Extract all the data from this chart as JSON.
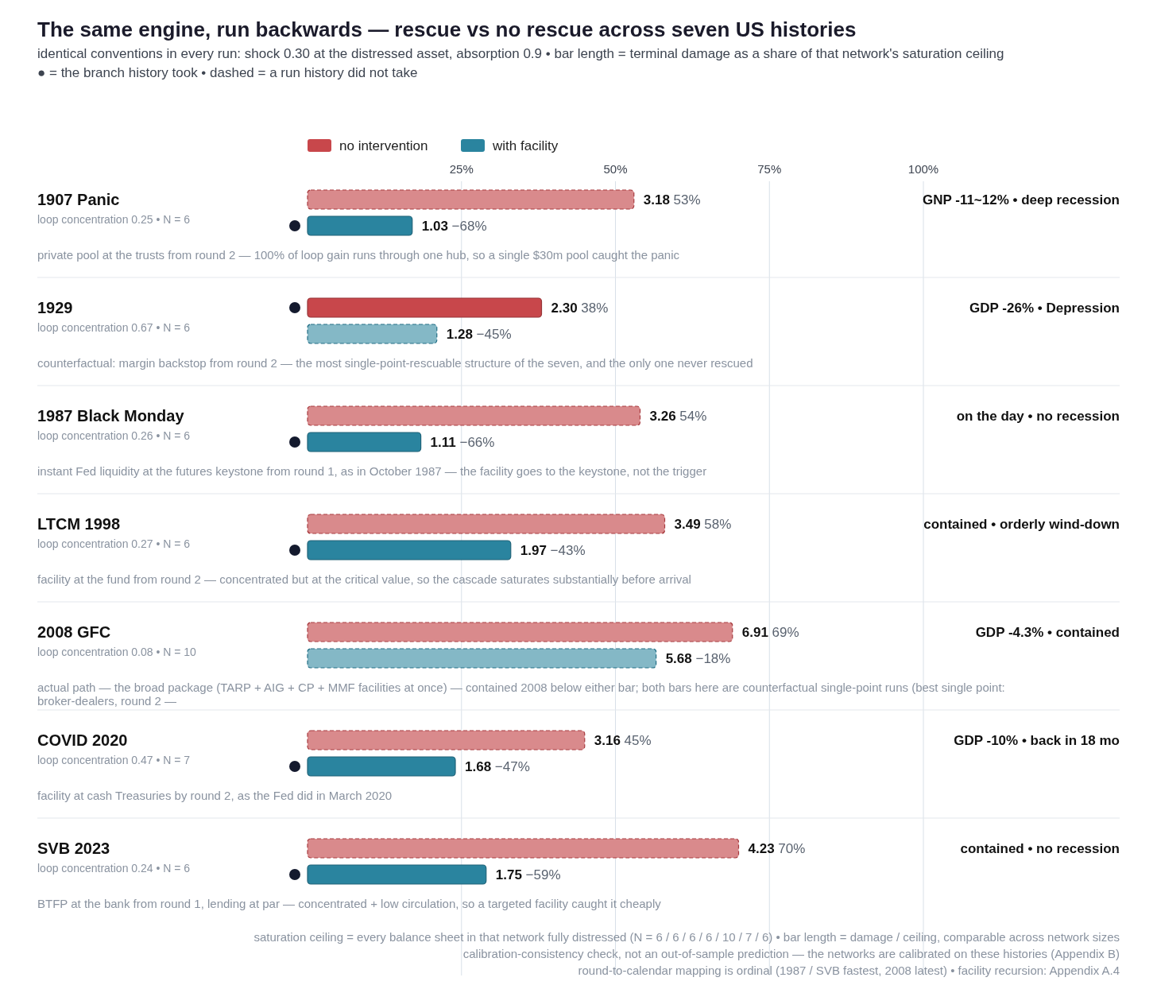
{
  "chart_data": {
    "type": "bar",
    "orientation": "horizontal",
    "title": "The same engine, run backwards — rescue vs no rescue across seven US histories",
    "subtitle": "identical conventions in every run: shock 0.30 at the distressed asset, absorption 0.9  •  bar length = terminal damage as a share of that network's saturation ceiling\n● = the branch history took  •  dashed = a run history did not take",
    "categories": [
      "1907 Panic",
      "1929",
      "1987 Black Monday",
      "LTCM 1998",
      "2008 GFC",
      "COVID 2020",
      "SVB 2023"
    ],
    "series": [
      {
        "name": "no intervention",
        "color": "#c8474b",
        "colors": [
          "#d98a8c",
          "#c8474b",
          "#d98a8c",
          "#d98a8c",
          "#d98a8c",
          "#d98a8c",
          "#d98a8c"
        ],
        "values": [
          53,
          38,
          54,
          58,
          69,
          45,
          70
        ],
        "value_labels": [
          "3.18 53%",
          "2.30 38%",
          "3.26 54%",
          "3.49 58%",
          "6.91 69%",
          "3.16 45%",
          "4.23 70%"
        ]
      },
      {
        "name": "with facility",
        "color": "#2a849f",
        "colors": [
          "#2a849f",
          "#84b8c6",
          "#2a849f",
          "#2a849f",
          "#84b8c6",
          "#2a849f",
          "#2a849f"
        ],
        "values": [
          17,
          21,
          18.4,
          33,
          56.6,
          24,
          29
        ]
      }
    ],
    "xlim": [
      0,
      100
    ],
    "xticks": [
      {
        "value": 25,
        "label": "25%"
      },
      {
        "value": 50,
        "label": "50%"
      },
      {
        "value": 75,
        "label": "75%"
      },
      {
        "value": 100,
        "label": "100%"
      }
    ],
    "grid": "x",
    "legend": "top",
    "annotations": [
      "loop concentration 0.25  •  N = 6",
      "GNP -11~12%  •  deep recession",
      "private pool at the trusts from round 2 — 100% of loop gain runs through one hub, so a single $30m pool caught the panic",
      "1.03 −68%",
      "loop concentration 0.67  •  N = 6",
      "GDP -26%  •  Depression",
      "counterfactual: margin backstop from round 2 — the most single-point-rescuable structure of the seven, and the only one never rescued",
      "1.28 −45%",
      "loop concentration 0.26  •  N = 6",
      "on the day  •  no recession",
      "instant Fed liquidity at the futures keystone from round 1, as in October 1987 — the facility goes to the keystone, not the trigger",
      "1.11 −66%",
      "loop concentration 0.27  •  N = 6",
      "contained  •  orderly wind-down",
      "facility at the fund from round 2 — concentrated but at the critical value, so the cascade saturates substantially before arrival",
      "1.97 −43%",
      "loop concentration 0.08  •  N = 10",
      "GDP -4.3%  •  contained",
      "actual path — the broad package (TARP + AIG + CP + MMF facilities at once) — contained 2008 below either bar; both bars here are counterfactual single-point runs (best single point: broker-dealers, round 2 —",
      "5.68 −18%",
      "loop concentration 0.47  •  N = 7",
      "GDP -10%  •  back in 18 mo",
      "facility at cash Treasuries by round 2, as the Fed did in March 2020",
      "1.68 −47%",
      "loop concentration 0.24  •  N = 6",
      "contained  •  no recession",
      "BTFP at the bank from round 1, lending at par — concentrated + low circulation, so a targeted facility caught it cheaply",
      "1.75 −59%",
      "saturation ceiling = every balance sheet in that network fully distressed (N = 6 / 6 / 6 / 6 / 10 / 7 / 6)  •  bar length = damage / ceiling, comparable across network sizes",
      "calibration-consistency check, not an out-of-sample prediction — the networks are calibrated on these histories (Appendix B)",
      "round-to-calendar mapping is ordinal (1987 / SVB fastest, 2008 latest)  •  facility recursion: Appendix A.4"
    ]
  }
}
